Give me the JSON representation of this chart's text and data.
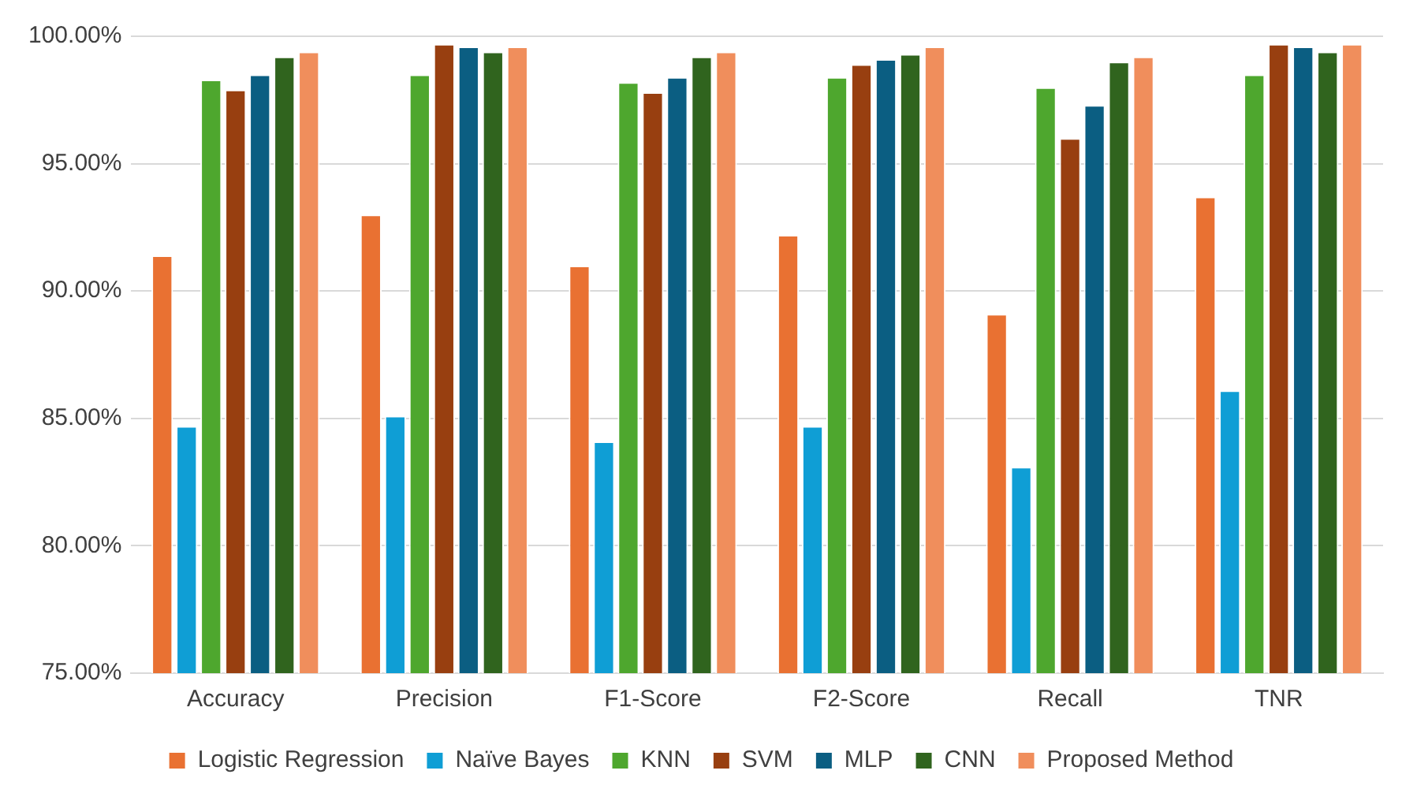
{
  "chart_data": {
    "type": "bar",
    "categories": [
      "Accuracy",
      "Precision",
      "F1-Score",
      "F2-Score",
      "Recall",
      "TNR"
    ],
    "series": [
      {
        "name": "Logistic Regression",
        "color": "#e97132",
        "values": [
          91.4,
          93.0,
          91.0,
          92.2,
          89.1,
          93.7
        ]
      },
      {
        "name": "Naïve Bayes",
        "color": "#0f9ed5",
        "values": [
          84.7,
          85.1,
          84.1,
          84.7,
          83.1,
          86.1
        ]
      },
      {
        "name": "KNN",
        "color": "#4ea72e",
        "values": [
          98.3,
          98.5,
          98.2,
          98.4,
          98.0,
          98.5
        ]
      },
      {
        "name": "SVM",
        "color": "#983f10",
        "values": [
          97.9,
          99.7,
          97.8,
          98.9,
          96.0,
          99.7
        ]
      },
      {
        "name": "MLP",
        "color": "#0b5e82",
        "values": [
          98.5,
          99.6,
          98.4,
          99.1,
          97.3,
          99.6
        ]
      },
      {
        "name": "CNN",
        "color": "#30641e",
        "values": [
          99.2,
          99.4,
          99.2,
          99.3,
          99.0,
          99.4
        ]
      },
      {
        "name": "Proposed Method",
        "color": "#f08e5c",
        "values": [
          99.4,
          99.6,
          99.4,
          99.6,
          99.2,
          99.7
        ]
      }
    ],
    "ylim": [
      75,
      100
    ],
    "yticks": [
      {
        "value": 75,
        "label": "75.00%"
      },
      {
        "value": 80,
        "label": "80.00%"
      },
      {
        "value": 85,
        "label": "85.00%"
      },
      {
        "value": 90,
        "label": "90.00%"
      },
      {
        "value": 95,
        "label": "95.00%"
      },
      {
        "value": 100,
        "label": "100.00%"
      }
    ],
    "grid": "y",
    "legend": "bottom"
  }
}
